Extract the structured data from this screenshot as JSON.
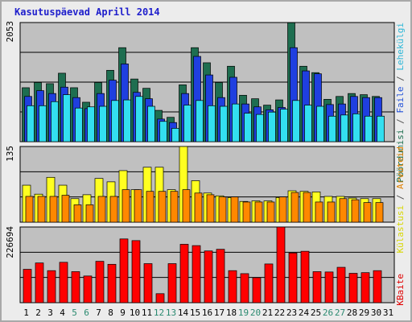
{
  "title": "Kasutuspäevad Aprill 2014",
  "panels": {
    "top": {
      "max_label": "2053",
      "legend": [
        {
          "text": "Pöördumisi",
          "color": "#1e7050"
        },
        {
          "text": " / ",
          "color": "#555555"
        },
        {
          "text": "Faile",
          "color": "#1f4fd8"
        },
        {
          "text": " / ",
          "color": "#555555"
        },
        {
          "text": "Lehekülgi",
          "color": "#2fb8d8"
        }
      ]
    },
    "middle": {
      "max_label": "135",
      "legend": [
        {
          "text": "Külastusi",
          "color": "#d8d800"
        },
        {
          "text": " / ",
          "color": "#555555"
        },
        {
          "text": "Arvuteid",
          "color": "#e08000"
        }
      ]
    },
    "bottom": {
      "max_label": "226694",
      "legend": [
        {
          "text": "KBaite",
          "color": "#e00000"
        }
      ]
    }
  },
  "colors": {
    "hits": "#1e6e50",
    "files": "#1f3fe0",
    "pages": "#33dff0",
    "visits": "#ffff20",
    "sites": "#ff8800",
    "kbytes": "#ff0000",
    "plot_bg": "#c0c0c0",
    "weekday": "#000000",
    "weekend": "#2a8a70"
  },
  "chart_data": {
    "type": "bar",
    "categories": [
      "1",
      "2",
      "3",
      "4",
      "5",
      "6",
      "7",
      "8",
      "9",
      "10",
      "11",
      "12",
      "13",
      "14",
      "15",
      "16",
      "17",
      "18",
      "19",
      "20",
      "21",
      "22",
      "23",
      "24",
      "25",
      "26",
      "27",
      "28",
      "29",
      "30",
      "31"
    ],
    "weekend_days": [
      "5",
      "6",
      "12",
      "13",
      "19",
      "20",
      "26",
      "27"
    ],
    "series": [
      {
        "name": "Pöördumisi",
        "panel": "top",
        "ymax": 2053,
        "values": [
          930,
          1020,
          1000,
          1180,
          930,
          680,
          1020,
          1230,
          1620,
          1080,
          920,
          540,
          420,
          980,
          1620,
          1360,
          1020,
          1300,
          800,
          740,
          630,
          720,
          2050,
          1300,
          1190,
          730,
          780,
          830,
          810,
          780,
          0
        ]
      },
      {
        "name": "Faile",
        "panel": "top",
        "ymax": 2053,
        "values": [
          780,
          880,
          830,
          940,
          760,
          570,
          830,
          1060,
          1340,
          850,
          740,
          390,
          330,
          830,
          1470,
          1150,
          760,
          1110,
          650,
          600,
          550,
          590,
          1620,
          1220,
          1170,
          640,
          650,
          780,
          760,
          760,
          0
        ]
      },
      {
        "name": "Lehekülgi",
        "panel": "top",
        "ymax": 2053,
        "values": [
          620,
          620,
          690,
          810,
          580,
          600,
          610,
          710,
          720,
          780,
          610,
          350,
          230,
          630,
          710,
          620,
          610,
          650,
          490,
          470,
          510,
          560,
          710,
          630,
          610,
          440,
          460,
          480,
          440,
          440,
          0
        ]
      },
      {
        "name": "Külastusi",
        "panel": "middle",
        "ymax": 135,
        "values": [
          66,
          50,
          80,
          66,
          42,
          49,
          78,
          72,
          92,
          58,
          98,
          98,
          58,
          135,
          74,
          52,
          47,
          44,
          37,
          38,
          38,
          44,
          56,
          55,
          54,
          46,
          46,
          43,
          42,
          42,
          0
        ]
      },
      {
        "name": "Arvuteid",
        "panel": "middle",
        "ymax": 135,
        "values": [
          46,
          46,
          46,
          48,
          31,
          31,
          46,
          46,
          58,
          58,
          55,
          55,
          55,
          58,
          52,
          49,
          45,
          45,
          36,
          36,
          36,
          45,
          53,
          53,
          36,
          36,
          42,
          40,
          35,
          35,
          0
        ]
      },
      {
        "name": "KBaite",
        "panel": "bottom",
        "ymax": 226694,
        "values": [
          100000,
          119000,
          96000,
          121000,
          93000,
          80000,
          124000,
          115000,
          191000,
          186000,
          117000,
          27000,
          117000,
          175000,
          171000,
          155000,
          160000,
          96000,
          87000,
          75000,
          116000,
          226694,
          149000,
          154000,
          93000,
          92000,
          106000,
          88000,
          90000,
          96000,
          0
        ]
      }
    ]
  }
}
